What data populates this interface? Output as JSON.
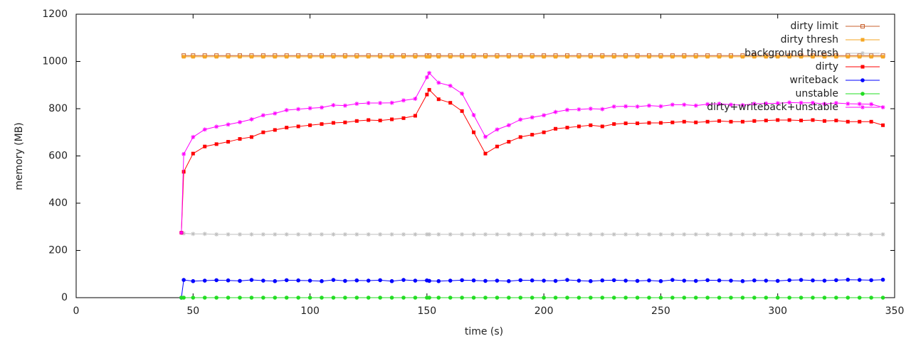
{
  "chart_data": {
    "type": "line",
    "xlabel": "time (s)",
    "ylabel": "memory (MB)",
    "xlim": [
      0,
      350
    ],
    "ylim": [
      0,
      1200
    ],
    "xticks": [
      0,
      50,
      100,
      150,
      200,
      250,
      300,
      350
    ],
    "yticks": [
      0,
      200,
      400,
      600,
      800,
      1000,
      1200
    ],
    "grid": false,
    "legend": "top-right",
    "x": [
      45,
      46,
      50,
      55,
      60,
      65,
      70,
      75,
      80,
      85,
      90,
      95,
      100,
      105,
      110,
      115,
      120,
      125,
      130,
      135,
      140,
      145,
      150,
      151,
      155,
      160,
      165,
      170,
      175,
      180,
      185,
      190,
      195,
      200,
      205,
      210,
      215,
      220,
      225,
      230,
      235,
      240,
      245,
      250,
      255,
      260,
      265,
      270,
      275,
      280,
      285,
      290,
      295,
      300,
      305,
      310,
      315,
      320,
      325,
      330,
      335,
      340,
      345
    ],
    "series": [
      {
        "name": "dirty limit",
        "color": "#c8602c",
        "marker": "open-square",
        "values": [
          null,
          1025,
          1025,
          1025,
          1025,
          1025,
          1025,
          1025,
          1025,
          1025,
          1025,
          1025,
          1025,
          1025,
          1025,
          1025,
          1025,
          1025,
          1025,
          1025,
          1025,
          1025,
          1025,
          1025,
          1025,
          1025,
          1025,
          1025,
          1025,
          1025,
          1025,
          1025,
          1025,
          1025,
          1025,
          1025,
          1025,
          1025,
          1025,
          1025,
          1025,
          1025,
          1025,
          1025,
          1025,
          1025,
          1025,
          1025,
          1025,
          1025,
          1025,
          1025,
          1025,
          1025,
          1025,
          1025,
          1025,
          1025,
          1025,
          1025,
          1025,
          1025,
          1025
        ]
      },
      {
        "name": "dirty thresh",
        "color": "#f5a623",
        "marker": "square",
        "values": [
          null,
          1020,
          1020,
          1020,
          1020,
          1020,
          1020,
          1020,
          1020,
          1020,
          1020,
          1020,
          1020,
          1020,
          1020,
          1020,
          1020,
          1020,
          1020,
          1020,
          1020,
          1020,
          1020,
          1020,
          1020,
          1020,
          1020,
          1020,
          1020,
          1020,
          1020,
          1020,
          1020,
          1020,
          1020,
          1020,
          1020,
          1020,
          1020,
          1020,
          1020,
          1020,
          1020,
          1020,
          1020,
          1020,
          1020,
          1020,
          1020,
          1020,
          1020,
          1020,
          1020,
          1020,
          1020,
          1020,
          1020,
          1020,
          1020,
          1020,
          1020,
          1020,
          1020
        ]
      },
      {
        "name": "background thresh",
        "color": "#c0c0c0",
        "marker": "star",
        "values": [
          null,
          272,
          270,
          270,
          268,
          268,
          268,
          268,
          268,
          268,
          268,
          268,
          268,
          268,
          268,
          268,
          268,
          268,
          268,
          268,
          268,
          268,
          268,
          268,
          268,
          268,
          268,
          268,
          268,
          268,
          268,
          268,
          268,
          268,
          268,
          268,
          268,
          268,
          268,
          268,
          268,
          268,
          268,
          268,
          268,
          268,
          268,
          268,
          268,
          268,
          268,
          268,
          268,
          268,
          268,
          268,
          268,
          268,
          268,
          268,
          268,
          268,
          268
        ]
      },
      {
        "name": "dirty",
        "color": "#ff0000",
        "marker": "square",
        "values": [
          275,
          533,
          610,
          640,
          650,
          660,
          672,
          680,
          700,
          710,
          720,
          725,
          730,
          735,
          740,
          742,
          748,
          752,
          750,
          755,
          760,
          770,
          860,
          880,
          840,
          825,
          790,
          700,
          610,
          640,
          660,
          680,
          690,
          700,
          715,
          720,
          725,
          730,
          725,
          735,
          738,
          738,
          740,
          740,
          742,
          745,
          742,
          745,
          748,
          745,
          745,
          748,
          750,
          752,
          752,
          750,
          752,
          748,
          750,
          745,
          745,
          745,
          730
        ]
      },
      {
        "name": "writeback",
        "color": "#0000ff",
        "marker": "circle",
        "values": [
          0,
          75,
          70,
          72,
          74,
          73,
          71,
          75,
          72,
          70,
          74,
          73,
          72,
          70,
          75,
          71,
          73,
          72,
          74,
          70,
          75,
          72,
          73,
          71,
          70,
          72,
          74,
          73,
          71,
          72,
          70,
          74,
          73,
          72,
          71,
          75,
          72,
          70,
          73,
          74,
          72,
          71,
          73,
          70,
          75,
          72,
          71,
          74,
          73,
          72,
          70,
          73,
          72,
          71,
          74,
          75,
          73,
          72,
          74,
          76,
          75,
          74,
          76
        ]
      },
      {
        "name": "unstable",
        "color": "#22dd22",
        "marker": "circle",
        "values": [
          0,
          0,
          0,
          0,
          0,
          0,
          0,
          0,
          0,
          0,
          0,
          0,
          0,
          0,
          0,
          0,
          0,
          0,
          0,
          0,
          0,
          0,
          0,
          0,
          0,
          0,
          0,
          0,
          0,
          0,
          0,
          0,
          0,
          0,
          0,
          0,
          0,
          0,
          0,
          0,
          0,
          0,
          0,
          0,
          0,
          0,
          0,
          0,
          0,
          0,
          0,
          0,
          0,
          0,
          0,
          0,
          0,
          0,
          0,
          0,
          0,
          0,
          0
        ]
      },
      {
        "name": "dirty+writeback+unstable",
        "color": "#ff00ff",
        "marker": "star",
        "values": [
          275,
          608,
          680,
          712,
          724,
          733,
          743,
          755,
          772,
          780,
          794,
          798,
          802,
          805,
          815,
          813,
          821,
          824,
          824,
          825,
          835,
          842,
          933,
          951,
          910,
          897,
          864,
          773,
          681,
          712,
          730,
          754,
          763,
          772,
          786,
          795,
          797,
          800,
          798,
          809,
          810,
          809,
          813,
          810,
          817,
          817,
          813,
          819,
          821,
          817,
          815,
          821,
          822,
          823,
          826,
          825,
          825,
          820,
          824,
          821,
          820,
          819,
          806
        ]
      }
    ]
  }
}
